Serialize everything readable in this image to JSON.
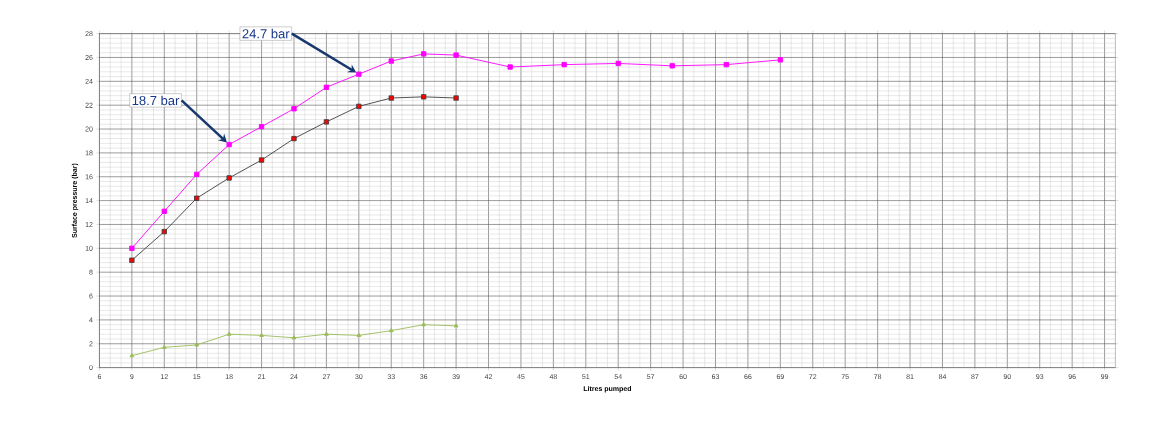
{
  "chart_data": {
    "type": "line",
    "xlabel": "Litres pumped",
    "ylabel": "Surface pressure (bar)",
    "xlim": [
      6,
      100
    ],
    "xticks": [
      6,
      9,
      12,
      15,
      18,
      21,
      24,
      27,
      30,
      33,
      36,
      39,
      42,
      45,
      48,
      51,
      54,
      57,
      60,
      63,
      66,
      69,
      72,
      75,
      78,
      81,
      84,
      87,
      90,
      93,
      96,
      99
    ],
    "ylim": [
      0,
      28
    ],
    "yticks": [
      0,
      2,
      4,
      6,
      8,
      10,
      12,
      14,
      16,
      18,
      20,
      22,
      24,
      26,
      28
    ],
    "grid": true,
    "series": [
      {
        "color": "#ff00ff",
        "marker": "square",
        "x": [
          9,
          12,
          15,
          18,
          21,
          24,
          27,
          30,
          33,
          36,
          39,
          44,
          49,
          54,
          59,
          64,
          69
        ],
        "values": [
          10.0,
          13.1,
          16.2,
          18.7,
          20.2,
          21.7,
          23.5,
          24.6,
          25.7,
          26.3,
          26.2,
          25.2,
          25.4,
          25.5,
          25.3,
          25.4,
          25.8
        ]
      },
      {
        "color": "#404040",
        "marker": "square",
        "x": [
          9,
          12,
          15,
          18,
          21,
          24,
          27,
          30,
          33,
          36,
          39
        ],
        "values": [
          9.0,
          11.4,
          14.2,
          15.9,
          17.4,
          19.2,
          20.6,
          21.9,
          22.6,
          22.7,
          22.6
        ]
      },
      {
        "color": "#9bbb59",
        "marker": "triangle",
        "x": [
          9,
          12,
          15,
          18,
          21,
          24,
          27,
          30,
          33,
          36,
          39
        ],
        "values": [
          1.0,
          1.7,
          1.9,
          2.8,
          2.7,
          2.5,
          2.8,
          2.7,
          3.1,
          3.6,
          3.5
        ]
      }
    ],
    "annotations": [
      {
        "text": "18.7 bar",
        "x": 18,
        "y": 18.7
      },
      {
        "text": "24.7 bar",
        "x": 30,
        "y": 24.6
      }
    ]
  }
}
